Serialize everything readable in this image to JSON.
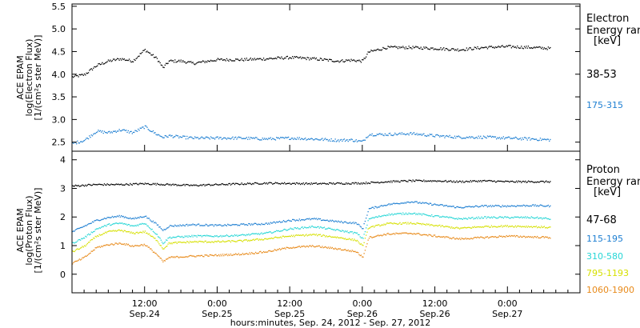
{
  "figure": {
    "xaxis_label": "hours:minutes, Sep. 24, 2012 - Sep. 27, 2012",
    "x_ticks": [
      {
        "time": "12:00",
        "date": "Sep.24",
        "hours": 12
      },
      {
        "time": "0:00",
        "date": "Sep.25",
        "hours": 24
      },
      {
        "time": "12:00",
        "date": "Sep.25",
        "hours": 36
      },
      {
        "time": "0:00",
        "date": "Sep.26",
        "hours": 48
      },
      {
        "time": "12:00",
        "date": "Sep.26",
        "hours": 60
      },
      {
        "time": "0:00",
        "date": "Sep.27",
        "hours": 72
      }
    ]
  },
  "chart_data": [
    {
      "type": "scatter",
      "panel": "electron",
      "ylabel": [
        "ACE EPAM",
        "log(Electron Flux)",
        "[1/(cm²s ster MeV)]"
      ],
      "legend_title": [
        "Electron",
        "Energy ran",
        "[keV]"
      ],
      "ylim": [
        2.3,
        5.55
      ],
      "yticks": [
        2.5,
        3.0,
        3.5,
        4.0,
        4.5,
        5.0,
        5.5
      ],
      "ytick_labels": [
        "2.5",
        "3.0",
        "3.5",
        "4.0",
        "4.5",
        "5.0",
        "5.5"
      ],
      "xlim_hours": [
        0,
        84
      ],
      "series": [
        {
          "name": "38-53",
          "color": "#000000",
          "x_hours": [
            0,
            2,
            4,
            6,
            8,
            10,
            12,
            14,
            15,
            16,
            18,
            20,
            24,
            28,
            32,
            36,
            40,
            44,
            46,
            48,
            49,
            52,
            56,
            60,
            64,
            68,
            72,
            76,
            79
          ],
          "values": [
            3.95,
            4.0,
            4.2,
            4.3,
            4.35,
            4.3,
            4.55,
            4.35,
            4.15,
            4.3,
            4.3,
            4.25,
            4.33,
            4.33,
            4.35,
            4.38,
            4.35,
            4.3,
            4.32,
            4.3,
            4.5,
            4.6,
            4.6,
            4.58,
            4.55,
            4.6,
            4.62,
            4.6,
            4.58
          ]
        },
        {
          "name": "175-315",
          "color": "#1e7fd2",
          "x_hours": [
            0,
            2,
            4,
            6,
            8,
            10,
            12,
            14,
            15,
            16,
            18,
            20,
            24,
            28,
            32,
            36,
            40,
            44,
            46,
            48,
            49,
            52,
            56,
            60,
            64,
            68,
            72,
            76,
            79
          ],
          "values": [
            2.48,
            2.55,
            2.75,
            2.72,
            2.78,
            2.72,
            2.85,
            2.68,
            2.62,
            2.65,
            2.62,
            2.6,
            2.6,
            2.6,
            2.58,
            2.6,
            2.58,
            2.55,
            2.56,
            2.52,
            2.68,
            2.68,
            2.7,
            2.65,
            2.62,
            2.62,
            2.6,
            2.58,
            2.56
          ]
        }
      ]
    },
    {
      "type": "scatter",
      "panel": "proton",
      "ylabel": [
        "ACE EPAM",
        "log(Proton Flux)",
        "[1/(cm²s ster MeV)]"
      ],
      "legend_title": [
        "Proton",
        "Energy ran",
        "[keV]"
      ],
      "ylim": [
        -0.65,
        4.3
      ],
      "yticks": [
        0,
        1,
        2,
        3,
        4
      ],
      "ytick_labels": [
        "0",
        "1",
        "2",
        "3",
        "4"
      ],
      "xlim_hours": [
        0,
        84
      ],
      "series": [
        {
          "name": "47-68",
          "color": "#000000",
          "x_hours": [
            0,
            4,
            8,
            12,
            16,
            20,
            24,
            32,
            40,
            48,
            52,
            56,
            60,
            64,
            68,
            72,
            76,
            79
          ],
          "values": [
            3.1,
            3.15,
            3.15,
            3.18,
            3.15,
            3.12,
            3.15,
            3.2,
            3.18,
            3.2,
            3.25,
            3.28,
            3.28,
            3.25,
            3.28,
            3.25,
            3.25,
            3.25
          ]
        },
        {
          "name": "115-195",
          "color": "#1e7fd2",
          "x_hours": [
            0,
            2,
            4,
            6,
            8,
            10,
            12,
            14,
            15,
            16,
            20,
            24,
            28,
            32,
            36,
            40,
            44,
            47,
            48,
            49,
            52,
            56,
            60,
            64,
            68,
            72,
            76,
            79
          ],
          "values": [
            1.5,
            1.7,
            1.9,
            2.0,
            2.05,
            1.95,
            2.05,
            1.75,
            1.55,
            1.7,
            1.75,
            1.72,
            1.75,
            1.78,
            1.9,
            1.95,
            1.85,
            1.8,
            1.6,
            2.3,
            2.45,
            2.55,
            2.45,
            2.35,
            2.4,
            2.4,
            2.42,
            2.4
          ]
        },
        {
          "name": "310-580",
          "color": "#27d6d6",
          "x_hours": [
            0,
            2,
            4,
            6,
            8,
            10,
            12,
            14,
            15,
            16,
            20,
            24,
            28,
            32,
            36,
            40,
            44,
            47,
            48,
            49,
            52,
            56,
            60,
            64,
            68,
            72,
            76,
            79
          ],
          "values": [
            1.1,
            1.3,
            1.6,
            1.75,
            1.8,
            1.7,
            1.8,
            1.4,
            1.1,
            1.3,
            1.35,
            1.35,
            1.38,
            1.45,
            1.6,
            1.68,
            1.55,
            1.45,
            1.25,
            1.95,
            2.1,
            2.15,
            2.05,
            1.95,
            2.0,
            2.0,
            2.0,
            1.95
          ]
        },
        {
          "name": "795-1193",
          "color": "#d6e000",
          "x_hours": [
            0,
            2,
            4,
            6,
            8,
            10,
            12,
            14,
            15,
            16,
            20,
            24,
            28,
            32,
            36,
            40,
            44,
            47,
            48,
            49,
            52,
            56,
            60,
            64,
            68,
            72,
            76,
            79
          ],
          "values": [
            0.8,
            1.0,
            1.35,
            1.5,
            1.55,
            1.45,
            1.5,
            1.2,
            0.9,
            1.1,
            1.15,
            1.15,
            1.18,
            1.25,
            1.35,
            1.4,
            1.3,
            1.2,
            1.0,
            1.65,
            1.78,
            1.8,
            1.72,
            1.62,
            1.68,
            1.7,
            1.68,
            1.65
          ]
        },
        {
          "name": "1060-1900",
          "color": "#e88a1a",
          "x_hours": [
            0,
            2,
            4,
            6,
            8,
            10,
            12,
            14,
            15,
            16,
            20,
            24,
            28,
            32,
            36,
            40,
            44,
            47,
            48,
            49,
            52,
            56,
            60,
            64,
            68,
            72,
            76,
            79
          ],
          "values": [
            0.4,
            0.6,
            0.95,
            1.05,
            1.1,
            1.0,
            1.05,
            0.7,
            0.45,
            0.6,
            0.65,
            0.68,
            0.72,
            0.8,
            0.95,
            1.0,
            0.9,
            0.8,
            0.6,
            1.3,
            1.42,
            1.45,
            1.35,
            1.25,
            1.3,
            1.35,
            1.32,
            1.3
          ]
        }
      ]
    }
  ]
}
